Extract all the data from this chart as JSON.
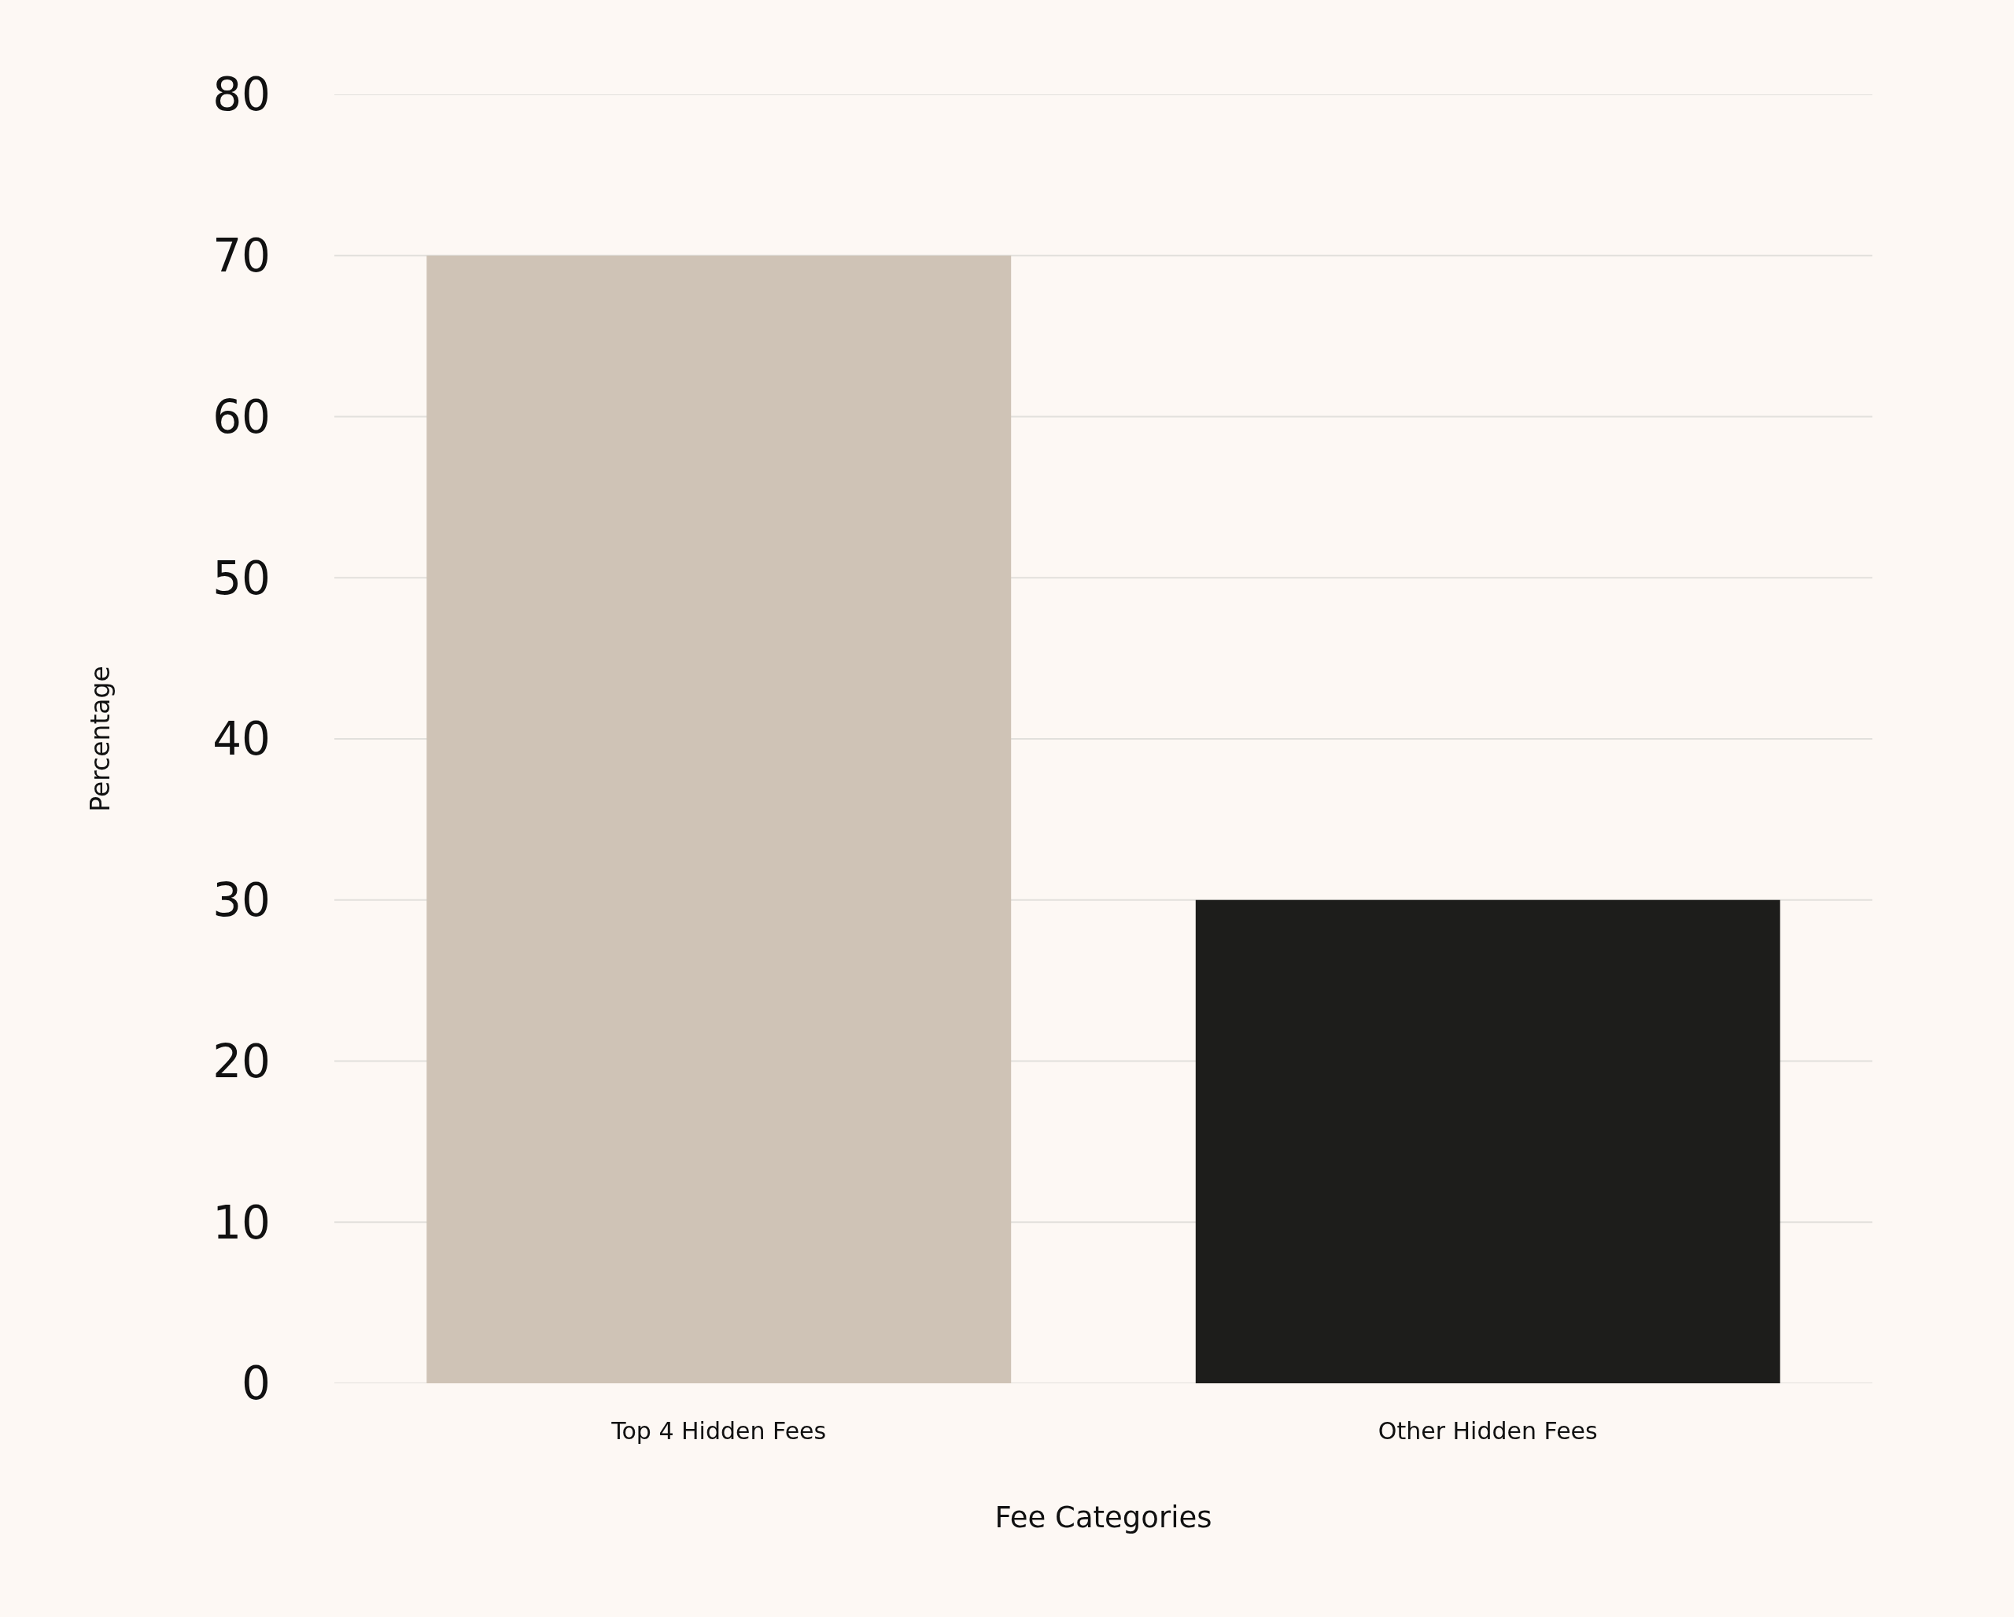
{
  "chart_data": {
    "type": "bar",
    "xlabel": "Fee Categories",
    "ylabel": "Percentage",
    "categories": [
      "Top 4 Hidden Fees",
      "Other Hidden Fees"
    ],
    "values": [
      70,
      30
    ],
    "colors": [
      "#cfc3b6",
      "#1d1d1b"
    ],
    "ylim": [
      0,
      80
    ],
    "yticks": [
      0,
      10,
      20,
      30,
      40,
      50,
      60,
      70,
      80
    ],
    "grid": "y"
  }
}
